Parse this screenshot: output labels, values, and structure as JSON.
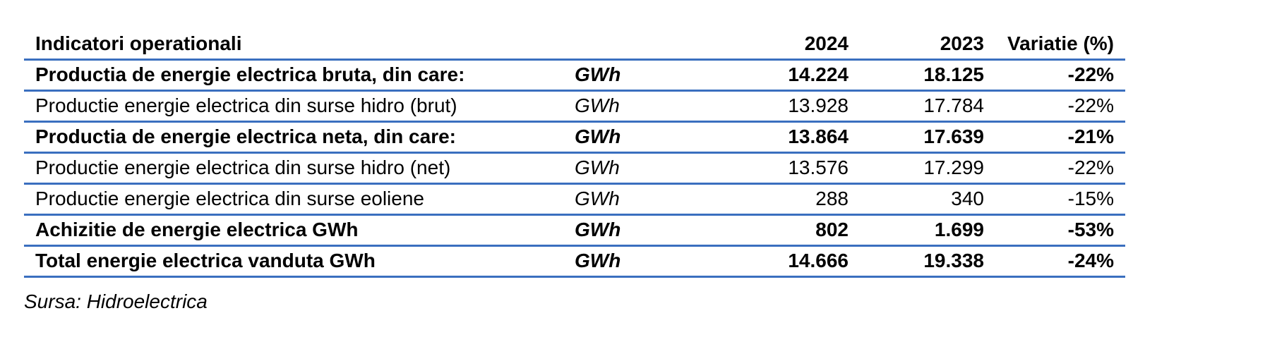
{
  "table": {
    "header": {
      "indicator": "Indicatori operationali",
      "unit": "",
      "year1": "2024",
      "year2": "2023",
      "variation": "Variatie (%)"
    },
    "rows": [
      {
        "label": "Productia de energie electrica bruta, din care:",
        "unit": "GWh",
        "year1": "14.224",
        "year2": "18.125",
        "variation": "-22%",
        "bold": true
      },
      {
        "label": "Productie energie electrica din surse hidro (brut)",
        "unit": "GWh",
        "year1": "13.928",
        "year2": "17.784",
        "variation": "-22%",
        "bold": false
      },
      {
        "label": "Productia de energie electrica neta, din care:",
        "unit": "GWh",
        "year1": "13.864",
        "year2": "17.639",
        "variation": "-21%",
        "bold": true
      },
      {
        "label": "Productie energie electrica din surse hidro (net)",
        "unit": "GWh",
        "year1": "13.576",
        "year2": "17.299",
        "variation": "-22%",
        "bold": false
      },
      {
        "label": "Productie energie electrica din surse eoliene",
        "unit": "GWh",
        "year1": "288",
        "year2": "340",
        "variation": "-15%",
        "bold": false
      },
      {
        "label": "Achizitie de energie electrica GWh",
        "unit": "GWh",
        "year1": "802",
        "year2": "1.699",
        "variation": "-53%",
        "bold": true
      },
      {
        "label": "Total energie electrica vanduta GWh",
        "unit": "GWh",
        "year1": "14.666",
        "year2": "19.338",
        "variation": "-24%",
        "bold": true
      }
    ],
    "rule_color": "#3a6fbf"
  },
  "source": "Sursa: Hidroelectrica"
}
